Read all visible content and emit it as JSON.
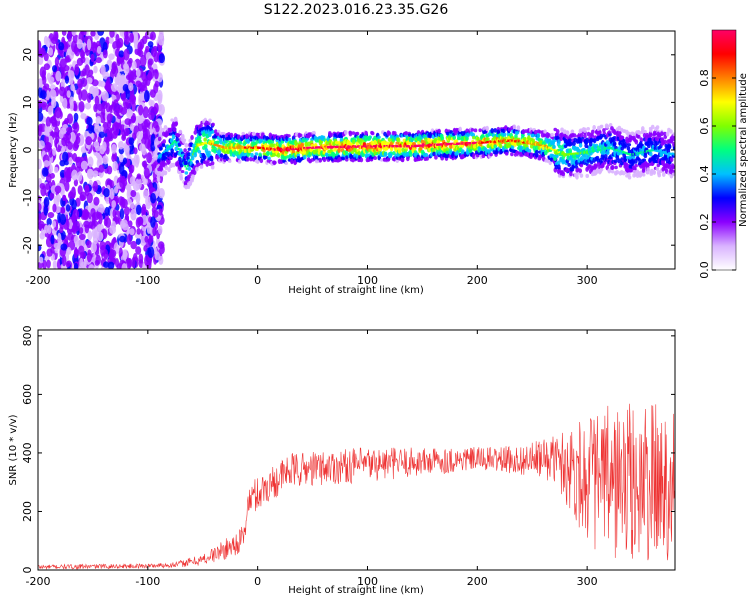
{
  "title": "S122.2023.016.23.35.G26",
  "chart_data": [
    {
      "type": "heatmap",
      "xlabel": "Height of straight line (km)",
      "ylabel": "Frequency (Hz)",
      "xlim": [
        -200,
        380
      ],
      "ylim": [
        -25,
        25
      ],
      "xticks": [
        -200,
        -100,
        0,
        100,
        200,
        300
      ],
      "yticks": [
        -20,
        -10,
        0,
        10,
        20
      ],
      "colorbar": {
        "label": "Normalized spectral amplitude",
        "range": [
          0,
          1
        ],
        "ticks": [
          0.0,
          0.2,
          0.4,
          0.6,
          0.8
        ],
        "colors": [
          "#ffffff",
          "#d9b3ff",
          "#8b00ff",
          "#0000ff",
          "#00c0ff",
          "#00ff80",
          "#80ff00",
          "#ffff00",
          "#ff8000",
          "#ff0000",
          "#ff0066"
        ]
      },
      "ridge": {
        "x": [
          -90,
          -75,
          -65,
          -55,
          -45,
          -30,
          -15,
          0,
          20,
          50,
          80,
          110,
          140,
          170,
          200,
          230,
          260,
          280,
          300,
          320,
          340,
          360,
          380
        ],
        "frequency": [
          -1.5,
          2,
          -4,
          1,
          1.5,
          0.5,
          0.5,
          0.5,
          0,
          0.5,
          0.7,
          0.8,
          0.8,
          1.2,
          1.5,
          2,
          1,
          -1,
          -0.5,
          0.5,
          -1,
          0,
          -1
        ],
        "peak_amplitude": [
          0.35,
          0.45,
          0.4,
          0.6,
          0.7,
          0.75,
          0.8,
          0.8,
          0.95,
          0.95,
          0.97,
          0.98,
          0.98,
          0.95,
          0.9,
          0.85,
          0.75,
          0.55,
          0.5,
          0.45,
          0.4,
          0.4,
          0.35
        ]
      },
      "noise_region": {
        "x_from": -200,
        "x_to": -95,
        "frequency_range": [
          -25,
          25
        ],
        "amplitude": [
          0.05,
          0.3
        ]
      }
    },
    {
      "type": "line",
      "xlabel": "Height of straight line (km)",
      "ylabel": "SNR (10 * v/v)",
      "xlim": [
        -200,
        380
      ],
      "ylim": [
        0,
        820
      ],
      "xticks": [
        -200,
        -100,
        0,
        100,
        200,
        300
      ],
      "yticks": [
        0,
        200,
        400,
        600,
        800
      ],
      "color": "#ee3333",
      "envelope": {
        "x": [
          -200,
          -150,
          -100,
          -75,
          -50,
          -30,
          -20,
          -12,
          -10,
          -5,
          0,
          10,
          30,
          60,
          100,
          150,
          200,
          240,
          270,
          290,
          310,
          330,
          350,
          370,
          380
        ],
        "mean": [
          10,
          12,
          14,
          18,
          35,
          70,
          90,
          110,
          210,
          250,
          260,
          290,
          340,
          350,
          360,
          370,
          380,
          375,
          380,
          340,
          300,
          300,
          290,
          300,
          320
        ],
        "amp": [
          8,
          8,
          8,
          10,
          20,
          35,
          40,
          50,
          50,
          60,
          60,
          60,
          60,
          60,
          60,
          50,
          40,
          50,
          80,
          180,
          250,
          280,
          280,
          280,
          280
        ]
      }
    }
  ]
}
